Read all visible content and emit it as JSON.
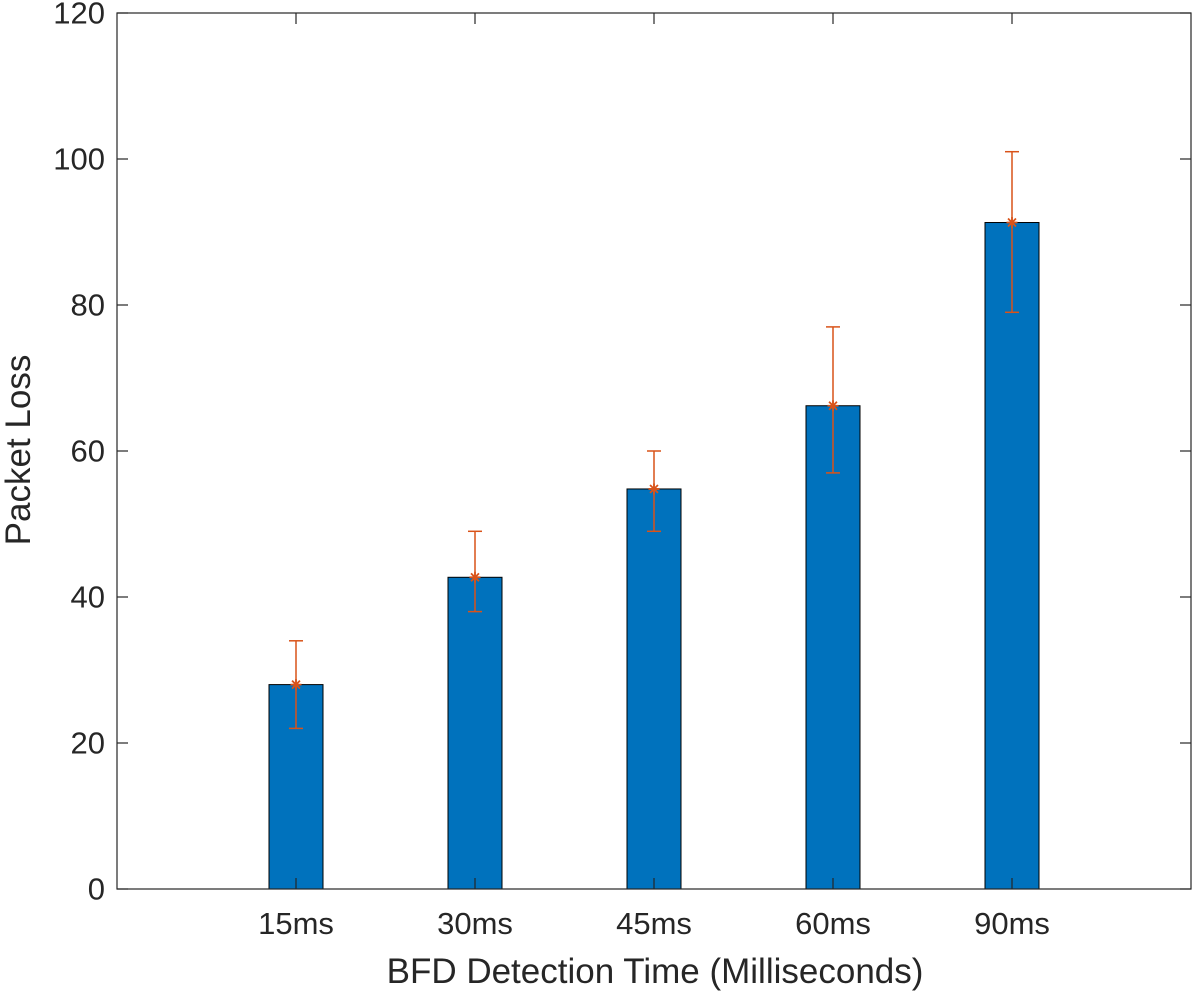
{
  "chart_data": {
    "type": "bar",
    "title": "",
    "xlabel": "BFD Detection Time (Milliseconds)",
    "ylabel": "Packet Loss",
    "categories": [
      "15ms",
      "30ms",
      "45ms",
      "60ms",
      "90ms"
    ],
    "values": [
      28,
      42.7,
      54.8,
      66.2,
      91.3
    ],
    "error_bars": {
      "upper": [
        34,
        49,
        60,
        77,
        101
      ],
      "lower": [
        22,
        38,
        49,
        57,
        79
      ]
    },
    "ylim": [
      0,
      120
    ],
    "yticks": [
      0,
      20,
      40,
      60,
      80,
      100,
      120
    ],
    "grid": false,
    "legend": "none",
    "colors": {
      "bar": "#0072BD",
      "bar_edge": "#000000",
      "error": "#D95319",
      "axis": "#262626"
    }
  }
}
